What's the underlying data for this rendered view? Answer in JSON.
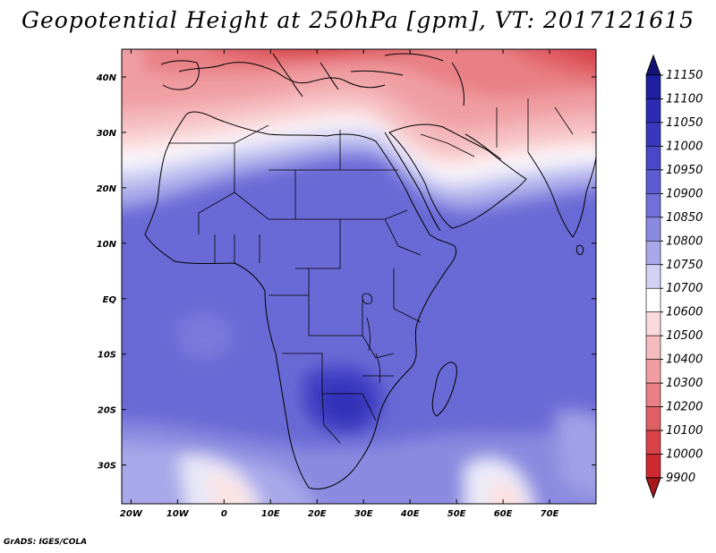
{
  "title": "Geopotential Height at 250hPa [gpm], VT: 2017121615",
  "credit": "GrADS: IGES/COLA",
  "chart_data": {
    "type": "heatmap",
    "variable": "Geopotential Height",
    "level": "250hPa",
    "units": "gpm",
    "valid_time": "2017121615",
    "lon_range": [
      -22,
      80
    ],
    "lat_range": [
      -37,
      45
    ],
    "x_ticks": [
      -20,
      -10,
      0,
      10,
      20,
      30,
      40,
      50,
      60,
      70
    ],
    "x_tick_labels": [
      "20W",
      "10W",
      "0",
      "10E",
      "20E",
      "30E",
      "40E",
      "50E",
      "60E",
      "70E"
    ],
    "y_ticks": [
      40,
      30,
      20,
      10,
      0,
      -10,
      -20,
      -30
    ],
    "y_tick_labels": [
      "40N",
      "30N",
      "20N",
      "10N",
      "EQ",
      "10S",
      "20S",
      "30S"
    ],
    "colorbar": {
      "levels": [
        11150,
        11100,
        11050,
        11000,
        10950,
        10900,
        10850,
        10800,
        10750,
        10700,
        10600,
        10500,
        10400,
        10300,
        10200,
        10100,
        10000,
        9900
      ],
      "colors": [
        "#141478",
        "#1e1ea0",
        "#2a2ab4",
        "#3838be",
        "#4848c8",
        "#5c5cd0",
        "#7070d8",
        "#8a8ae0",
        "#a8a8ea",
        "#d2d2f4",
        "#ffffff",
        "#fadadc",
        "#f5bcbf",
        "#f09ea2",
        "#e88085",
        "#e06066",
        "#d84248",
        "#cc2a30",
        "#a8181c"
      ]
    }
  }
}
